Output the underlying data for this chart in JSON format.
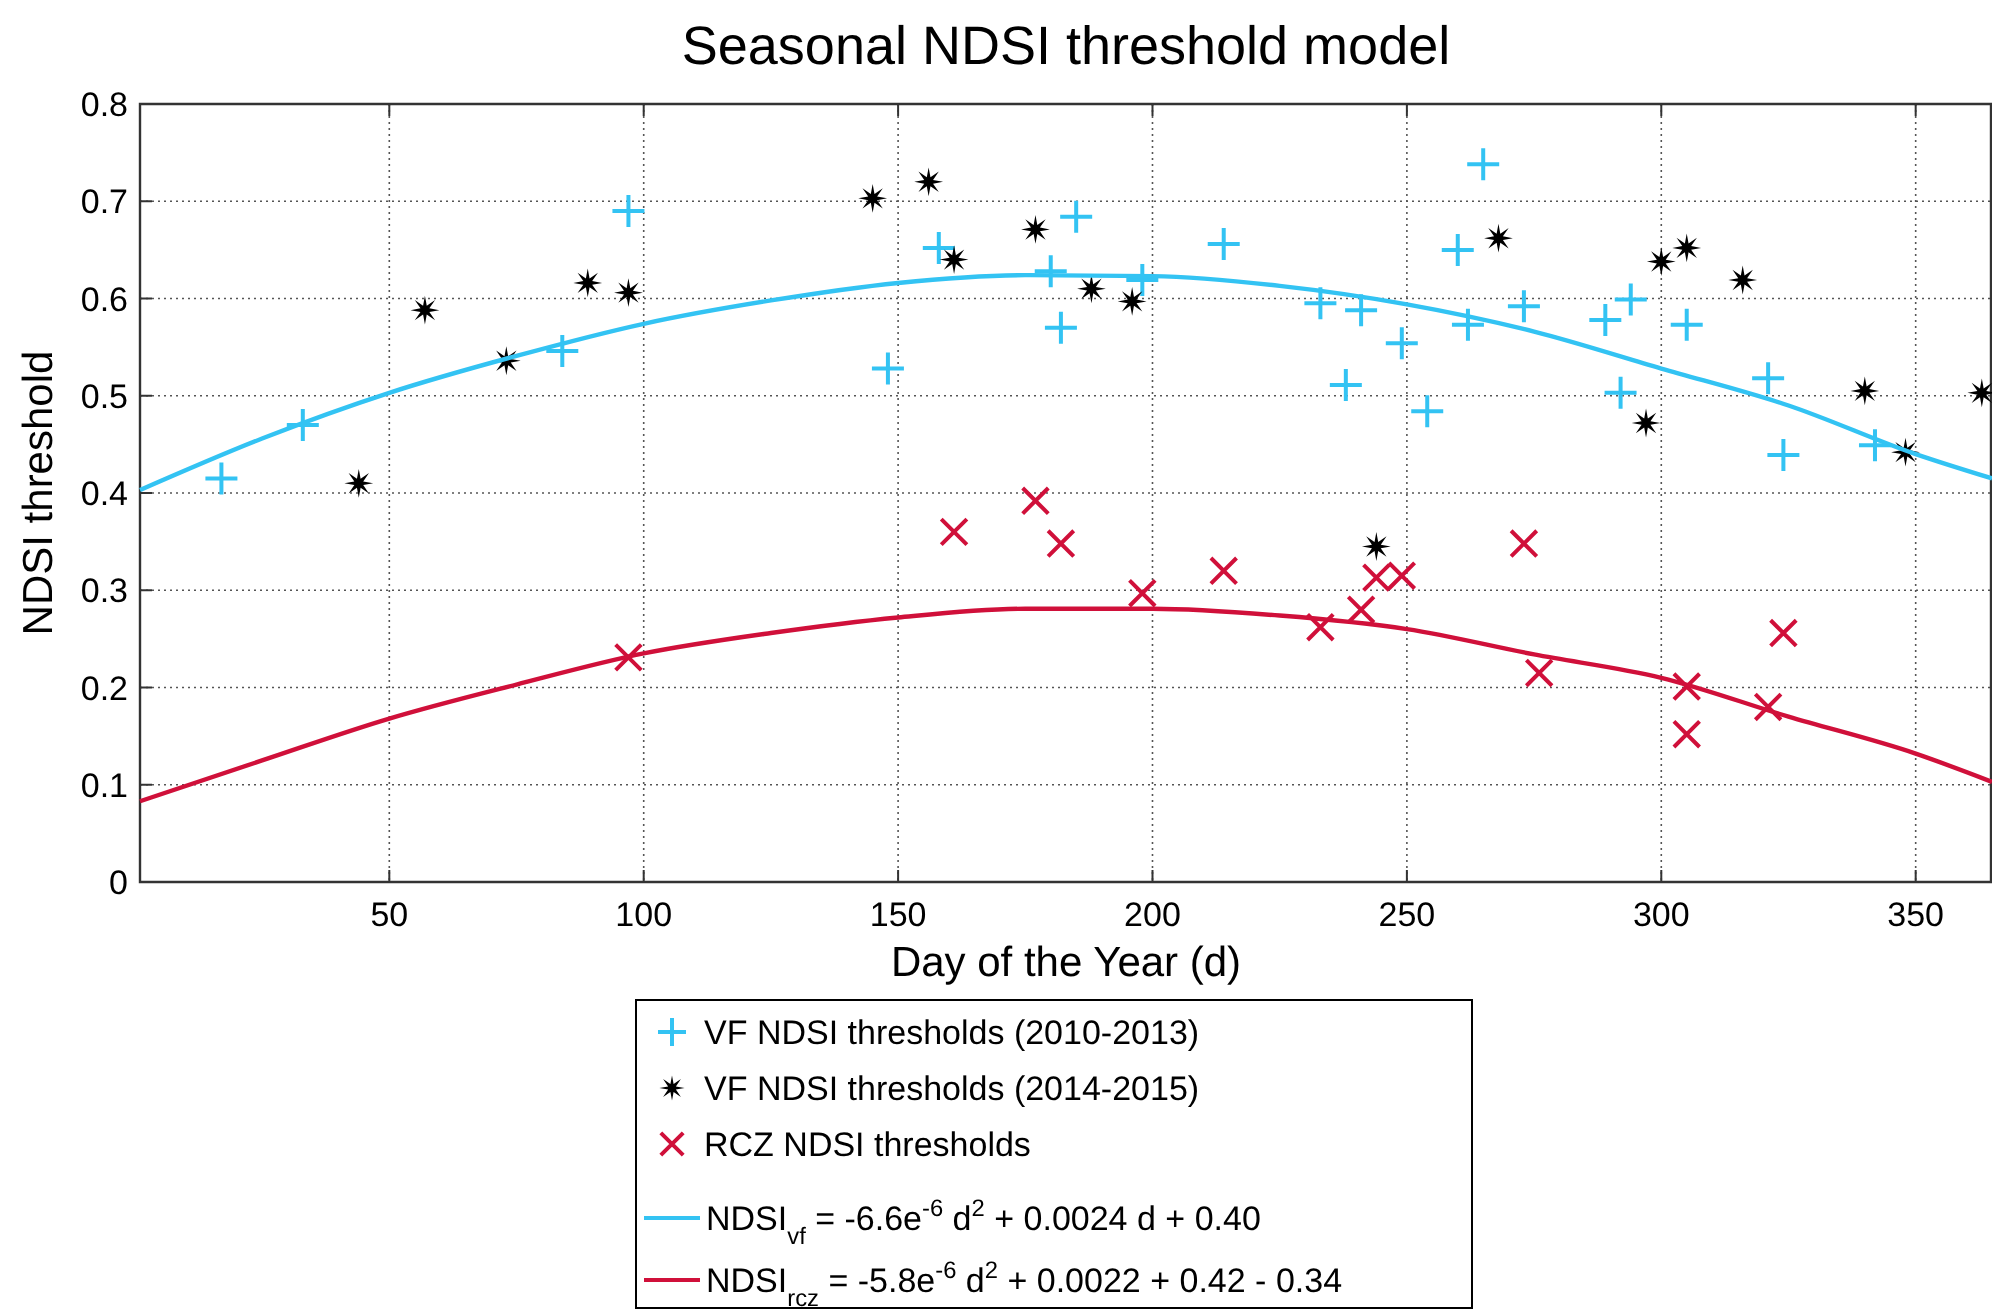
{
  "chart_data": {
    "type": "scatter",
    "title": "Seasonal NDSI threshold model",
    "xlabel": "Day of the Year (d)",
    "ylabel": "NDSI threshold",
    "xlim": [
      1,
      365
    ],
    "xticks": [
      50,
      100,
      150,
      200,
      250,
      300,
      350
    ],
    "ylim": [
      0,
      0.8
    ],
    "yticks": [
      0,
      0.1,
      0.2,
      0.3,
      0.4,
      0.5,
      0.6,
      0.7,
      0.8
    ],
    "grid": true,
    "legend": "bottom",
    "series": [
      {
        "name": "VF NDSI thresholds (2010-2013)",
        "color": "#33c3f3",
        "marker": "plus",
        "x": [
          17,
          33,
          84,
          97,
          148,
          158,
          180,
          182,
          185,
          198,
          214,
          233,
          238,
          241,
          249,
          254,
          260,
          262,
          265,
          273,
          289,
          292,
          294,
          305,
          321,
          324,
          342
        ],
        "values": [
          0.415,
          0.47,
          0.546,
          0.69,
          0.528,
          0.652,
          0.628,
          0.57,
          0.684,
          0.619,
          0.656,
          0.595,
          0.511,
          0.588,
          0.554,
          0.484,
          0.65,
          0.573,
          0.738,
          0.592,
          0.578,
          0.503,
          0.599,
          0.573,
          0.518,
          0.439,
          0.449
        ]
      },
      {
        "name": "VF NDSI thresholds (2014-2015)",
        "color": "#000000",
        "marker": "star",
        "x": [
          44,
          57,
          73,
          89,
          97,
          145,
          156,
          161,
          177,
          188,
          196,
          244,
          268,
          297,
          300,
          305,
          316,
          340,
          348,
          363
        ],
        "values": [
          0.41,
          0.588,
          0.536,
          0.616,
          0.606,
          0.703,
          0.72,
          0.64,
          0.671,
          0.61,
          0.597,
          0.345,
          0.662,
          0.472,
          0.638,
          0.652,
          0.619,
          0.505,
          0.442,
          0.503
        ]
      },
      {
        "name": "RCZ NDSI thresholds",
        "color": "#d0103a",
        "marker": "cross",
        "x": [
          97,
          161,
          177,
          182,
          198,
          214,
          233,
          241,
          244,
          249,
          273,
          276,
          305,
          305,
          321,
          324
        ],
        "values": [
          0.231,
          0.36,
          0.392,
          0.348,
          0.297,
          0.32,
          0.262,
          0.28,
          0.313,
          0.315,
          0.348,
          0.215,
          0.201,
          0.152,
          0.18,
          0.256
        ]
      },
      {
        "name": "NDSI$_{vf}$ = -6.6e$^{-6}$ d$^{2}$ + 0.0024 d + 0.40",
        "type": "line",
        "color": "#33c3f3",
        "marker": "none",
        "x": [
          1,
          25,
          50,
          75,
          100,
          125,
          150,
          175,
          200,
          225,
          250,
          275,
          300,
          325,
          350,
          365
        ],
        "values": [
          0.403,
          0.456,
          0.503,
          0.541,
          0.574,
          0.598,
          0.616,
          0.624,
          0.623,
          0.613,
          0.594,
          0.566,
          0.528,
          0.49,
          0.44,
          0.415
        ]
      },
      {
        "name": "NDSI$_{rcz}$ = -5.8e$^{-6}$ d$^{2}$ + 0.0022 + 0.42 - 0.34",
        "type": "line",
        "color": "#d0103a",
        "marker": "none",
        "x": [
          1,
          25,
          50,
          75,
          100,
          125,
          150,
          175,
          200,
          225,
          250,
          275,
          300,
          325,
          350,
          365
        ],
        "values": [
          0.083,
          0.125,
          0.168,
          0.203,
          0.235,
          0.256,
          0.272,
          0.281,
          0.281,
          0.274,
          0.26,
          0.234,
          0.21,
          0.17,
          0.132,
          0.103
        ]
      }
    ]
  }
}
